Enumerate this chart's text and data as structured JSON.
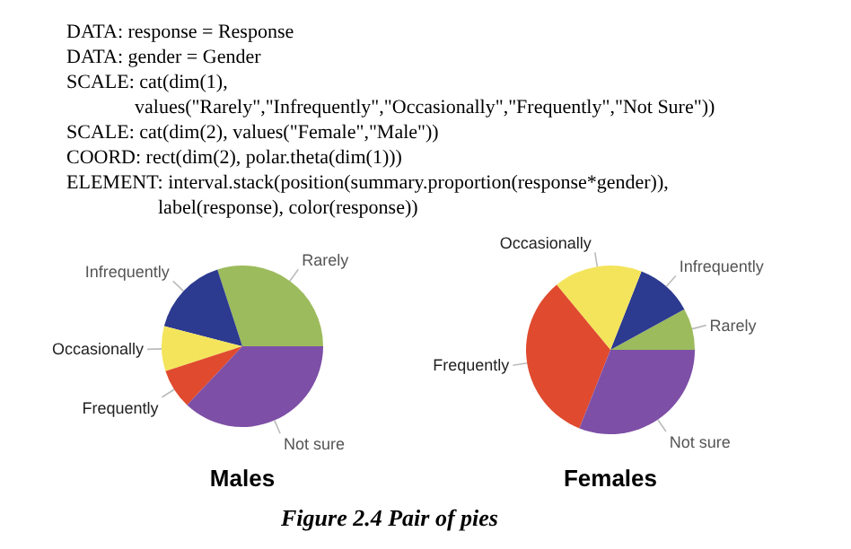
{
  "chart_data": [
    {
      "type": "other",
      "annotations": [
        "DATA: response = Response",
        "DATA: gender = Gender",
        "SCALE: cat(dim(1),",
        "values(\"Rarely\",\"Infrequently\",\"Occasionally\",\"Frequently\",\"Not Sure\"))",
        "SCALE: cat(dim(2), values(\"Female\",\"Male\"))",
        "COORD: rect(dim(2), polar.theta(dim(1)))",
        "ELEMENT: interval.stack(position(summary.proportion(response*gender)),",
        "label(response), color(response))",
        "Figure 2.4  Pair of pies"
      ]
    },
    {
      "type": "pie",
      "title": "Males",
      "categories": [
        "Rarely",
        "Infrequently",
        "Occasionally",
        "Frequently",
        "Not sure"
      ],
      "values": [
        30,
        16,
        9,
        8,
        37
      ],
      "colors": [
        "#9cbb5c",
        "#2c3a8f",
        "#f3e45c",
        "#e04a2e",
        "#7d4fa6"
      ]
    },
    {
      "type": "pie",
      "title": "Females",
      "categories": [
        "Rarely",
        "Infrequently",
        "Occasionally",
        "Frequently",
        "Not sure"
      ],
      "values": [
        8,
        11,
        17,
        33,
        31
      ],
      "colors": [
        "#9cbb5c",
        "#2c3a8f",
        "#f3e45c",
        "#e04a2e",
        "#7d4fa6"
      ]
    }
  ]
}
